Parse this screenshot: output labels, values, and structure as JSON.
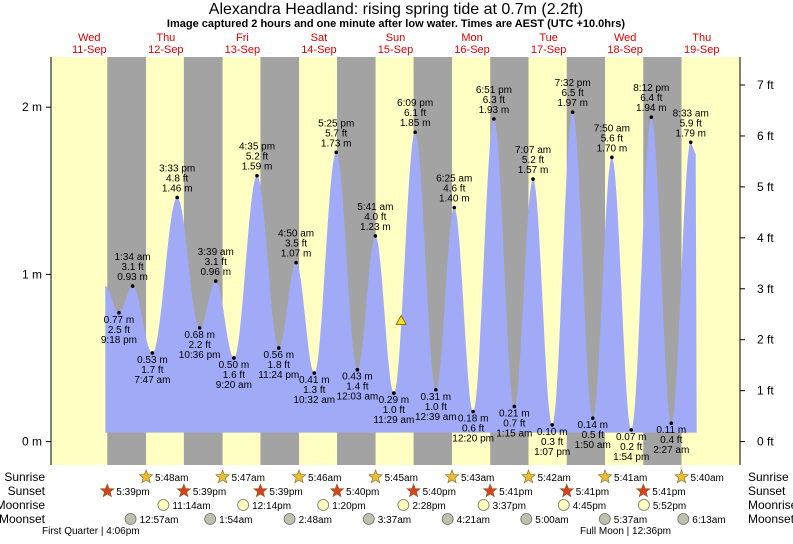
{
  "chart_data": {
    "type": "tide",
    "title": "Alexandra Headland: rising  spring tide at 0.7m (2.2ft)",
    "subtitle": "Image captured 2 hours and one minute after low water. Times are AEST (UTC +10.0hrs)",
    "current_height": 0.7,
    "ylim": [
      -0.14,
      2.3
    ],
    "yticks": [
      {
        "value": 0,
        "label": "0 m"
      },
      {
        "value": 1,
        "label": "1 m"
      },
      {
        "value": 2,
        "label": "2 m"
      }
    ],
    "y2lim": [
      -0.46,
      7.55
    ],
    "y2ticks": [
      {
        "value": 0,
        "label": "0 ft"
      },
      {
        "value": 1,
        "label": "1 ft"
      },
      {
        "value": 2,
        "label": "2 ft"
      },
      {
        "value": 3,
        "label": "3 ft"
      },
      {
        "value": 4,
        "label": "4 ft"
      },
      {
        "value": 5,
        "label": "5 ft"
      },
      {
        "value": 6,
        "label": "6 ft"
      },
      {
        "value": 7,
        "label": "7 ft"
      }
    ],
    "row_labels": [
      "Sunrise",
      "Sunset",
      "Moonrise",
      "Moonset"
    ],
    "moon_phases": [
      "First Quarter | 4:06pm",
      "Full Moon | 12:36pm"
    ],
    "colors": {
      "day": "#ffffc4",
      "night": "#a3a3a3",
      "water": "#a0aaf6",
      "date": "#dd0000"
    },
    "days": [
      {
        "weekday": "Wed",
        "date": "11-Sep",
        "sunrise": null,
        "sunset": "5:39pm",
        "moonrise": null,
        "moonset": null,
        "tides": [
          {
            "time": "9:18 pm",
            "height": 0.77,
            "height_label": "0.77 m",
            "feet_label": "2.5 ft"
          }
        ]
      },
      {
        "weekday": "Thu",
        "date": "12-Sep",
        "sunrise": "5:48am",
        "sunset": "5:39pm",
        "moonrise": "11:14am",
        "moonset": "12:57am",
        "tides": [
          {
            "time": "1:34 am",
            "height": 0.93,
            "height_label": "0.93 m",
            "feet_label": "3.1 ft"
          },
          {
            "time": "7:47 am",
            "height": 0.53,
            "height_label": "0.53 m",
            "feet_label": "1.7 ft"
          },
          {
            "time": "3:33 pm",
            "height": 1.46,
            "height_label": "1.46 m",
            "feet_label": "4.8 ft"
          },
          {
            "time": "10:36 pm",
            "height": 0.68,
            "height_label": "0.68 m",
            "feet_label": "2.2 ft"
          }
        ]
      },
      {
        "weekday": "Fri",
        "date": "13-Sep",
        "sunrise": "5:47am",
        "sunset": "5:39pm",
        "moonrise": "12:14pm",
        "moonset": "1:54am",
        "tides": [
          {
            "time": "3:39 am",
            "height": 0.96,
            "height_label": "0.96 m",
            "feet_label": "3.1 ft"
          },
          {
            "time": "9:20 am",
            "height": 0.5,
            "height_label": "0.50 m",
            "feet_label": "1.6 ft"
          },
          {
            "time": "4:35 pm",
            "height": 1.59,
            "height_label": "1.59 m",
            "feet_label": "5.2 ft"
          },
          {
            "time": "11:24 pm",
            "height": 0.56,
            "height_label": "0.56 m",
            "feet_label": "1.8 ft"
          }
        ]
      },
      {
        "weekday": "Sat",
        "date": "14-Sep",
        "sunrise": "5:46am",
        "sunset": "5:40pm",
        "moonrise": "1:20pm",
        "moonset": "2:48am",
        "tides": [
          {
            "time": "4:50 am",
            "height": 1.07,
            "height_label": "1.07 m",
            "feet_label": "3.5 ft"
          },
          {
            "time": "10:32 am",
            "height": 0.41,
            "height_label": "0.41 m",
            "feet_label": "1.3 ft"
          },
          {
            "time": "5:25 pm",
            "height": 1.73,
            "height_label": "1.73 m",
            "feet_label": "5.7 ft"
          }
        ]
      },
      {
        "weekday": "Sun",
        "date": "15-Sep",
        "sunrise": "5:45am",
        "sunset": "5:40pm",
        "moonrise": "2:28pm",
        "moonset": "3:37am",
        "tides": [
          {
            "time": "12:03 am",
            "height": 0.43,
            "height_label": "0.43 m",
            "feet_label": "1.4 ft"
          },
          {
            "time": "5:41 am",
            "height": 1.23,
            "height_label": "1.23 m",
            "feet_label": "4.0 ft"
          },
          {
            "time": "11:29 am",
            "height": 0.29,
            "height_label": "0.29 m",
            "feet_label": "1.0 ft"
          },
          {
            "time": "6:09 pm",
            "height": 1.85,
            "height_label": "1.85 m",
            "feet_label": "6.1 ft"
          }
        ]
      },
      {
        "weekday": "Mon",
        "date": "16-Sep",
        "sunrise": "5:43am",
        "sunset": "5:41pm",
        "moonrise": "3:37pm",
        "moonset": "4:21am",
        "tides": [
          {
            "time": "12:39 am",
            "height": 0.31,
            "height_label": "0.31 m",
            "feet_label": "1.0 ft"
          },
          {
            "time": "6:25 am",
            "height": 1.4,
            "height_label": "1.40 m",
            "feet_label": "4.6 ft"
          },
          {
            "time": "12:20 pm",
            "height": 0.18,
            "height_label": "0.18 m",
            "feet_label": "0.6 ft"
          },
          {
            "time": "6:51 pm",
            "height": 1.93,
            "height_label": "1.93 m",
            "feet_label": "6.3 ft"
          }
        ]
      },
      {
        "weekday": "Tue",
        "date": "17-Sep",
        "sunrise": "5:42am",
        "sunset": "5:41pm",
        "moonrise": "4:45pm",
        "moonset": "5:00am",
        "tides": [
          {
            "time": "1:15 am",
            "height": 0.21,
            "height_label": "0.21 m",
            "feet_label": "0.7 ft"
          },
          {
            "time": "7:07 am",
            "height": 1.57,
            "height_label": "1.57 m",
            "feet_label": "5.2 ft"
          },
          {
            "time": "1:07 pm",
            "height": 0.1,
            "height_label": "0.10 m",
            "feet_label": "0.3 ft"
          },
          {
            "time": "7:32 pm",
            "height": 1.97,
            "height_label": "1.97 m",
            "feet_label": "6.5 ft"
          }
        ]
      },
      {
        "weekday": "Wed",
        "date": "18-Sep",
        "sunrise": "5:41am",
        "sunset": "5:41pm",
        "moonrise": "5:52pm",
        "moonset": "5:37am",
        "tides": [
          {
            "time": "1:50 am",
            "height": 0.14,
            "height_label": "0.14 m",
            "feet_label": "0.5 ft"
          },
          {
            "time": "7:50 am",
            "height": 1.7,
            "height_label": "1.70 m",
            "feet_label": "5.6 ft"
          },
          {
            "time": "1:54 pm",
            "height": 0.07,
            "height_label": "0.07 m",
            "feet_label": "0.2 ft"
          },
          {
            "time": "8:12 pm",
            "height": 1.94,
            "height_label": "1.94 m",
            "feet_label": "6.4 ft"
          }
        ]
      },
      {
        "weekday": "Thu",
        "date": "19-Sep",
        "sunrise": "5:40am",
        "sunset": null,
        "moonrise": null,
        "moonset": "6:13am",
        "tides": [
          {
            "time": "2:27 am",
            "height": 0.11,
            "height_label": "0.11 m",
            "feet_label": "0.4 ft"
          },
          {
            "time": "8:33 am",
            "height": 1.79,
            "height_label": "1.79 m",
            "feet_label": "5.9 ft"
          }
        ]
      }
    ]
  }
}
